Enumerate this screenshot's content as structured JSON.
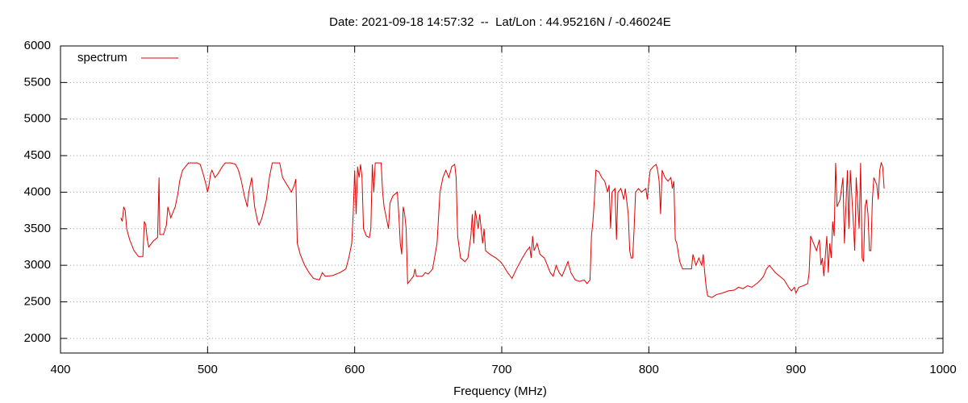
{
  "chart_data": {
    "type": "line",
    "title": "Date: 2021-09-18 14:57:32  --  Lat/Lon : 44.95216N / -0.46024E",
    "xlabel": "Frequency (MHz)",
    "xlim": [
      400,
      1000
    ],
    "xticks": [
      400,
      500,
      600,
      700,
      800,
      900,
      1000
    ],
    "ylim": [
      1800,
      6000
    ],
    "yticks": [
      2000,
      2500,
      3000,
      3500,
      4000,
      4500,
      5000,
      5500,
      6000
    ],
    "grid": true,
    "legend": "top-left",
    "x": [
      441,
      442,
      443,
      444,
      445,
      447,
      450,
      453,
      456,
      457,
      458,
      459,
      460,
      463,
      466,
      467,
      467.5,
      470,
      472,
      473,
      475,
      478,
      480,
      481,
      483,
      485,
      487,
      490,
      493,
      495,
      497,
      499,
      500,
      501,
      502,
      503,
      505,
      507,
      510,
      512,
      516,
      519,
      521,
      523,
      525,
      527,
      528,
      530,
      531,
      532,
      534,
      535,
      537,
      540,
      542,
      544,
      549,
      551,
      554,
      557,
      559,
      560,
      561,
      563,
      566,
      569,
      572,
      576,
      578,
      580,
      585,
      590,
      594,
      596,
      598,
      599,
      600,
      601,
      602,
      603,
      604,
      605,
      606,
      608,
      610,
      611,
      612,
      613,
      614,
      618,
      619,
      620,
      622,
      623,
      624,
      626,
      629,
      630,
      631,
      632,
      633,
      634,
      635,
      636,
      638,
      640,
      641,
      642,
      646,
      648,
      650,
      653,
      656,
      658,
      660,
      662,
      664,
      666,
      668,
      669,
      670,
      672,
      675,
      677,
      679,
      680,
      681,
      682,
      684,
      685,
      687,
      688,
      689,
      692,
      696,
      699,
      701,
      704,
      707,
      710,
      714,
      717,
      719,
      720,
      721,
      722,
      724,
      726,
      729,
      731,
      733,
      735,
      737,
      739,
      741,
      743,
      745,
      747,
      750,
      753,
      756,
      758,
      760,
      761,
      762,
      763,
      764,
      766,
      768,
      770,
      772,
      773,
      774,
      775,
      777,
      778,
      779,
      781,
      783,
      784,
      786,
      787,
      788,
      789,
      790,
      791,
      793,
      795,
      798,
      799,
      800,
      801,
      803,
      805,
      806,
      807,
      808,
      809,
      811,
      813,
      815,
      816,
      817,
      818,
      819,
      821,
      823,
      826,
      829,
      830,
      832,
      834,
      836,
      837,
      838,
      839,
      840,
      843,
      846,
      850,
      854,
      858,
      861,
      864,
      867,
      870,
      874,
      876,
      878,
      880,
      882,
      884,
      886,
      889,
      892,
      895,
      897,
      899,
      900,
      902,
      905,
      908,
      909,
      910,
      912,
      914,
      916,
      917,
      918,
      919,
      921,
      922,
      923,
      924,
      925,
      926,
      927,
      928,
      930,
      932,
      933,
      935,
      936,
      937,
      939,
      940,
      941,
      943,
      944,
      945,
      946,
      947,
      948,
      949,
      950,
      951,
      952,
      953,
      955,
      956,
      957,
      958,
      959,
      960
    ],
    "series": [
      {
        "name": "spectrum",
        "color": "#e00000",
        "values": [
          3650,
          3600,
          3800,
          3750,
          3500,
          3350,
          3200,
          3120,
          3120,
          3600,
          3550,
          3350,
          3250,
          3330,
          3380,
          4200,
          3420,
          3420,
          3550,
          3800,
          3650,
          3800,
          4000,
          4150,
          4300,
          4350,
          4400,
          4400,
          4400,
          4380,
          4250,
          4100,
          4000,
          4100,
          4250,
          4300,
          4200,
          4250,
          4350,
          4400,
          4400,
          4380,
          4300,
          4150,
          3950,
          3800,
          4000,
          4200,
          4000,
          3800,
          3600,
          3550,
          3650,
          3900,
          4200,
          4400,
          4400,
          4200,
          4100,
          4000,
          4100,
          4180,
          3300,
          3150,
          3000,
          2900,
          2820,
          2800,
          2900,
          2850,
          2860,
          2900,
          2950,
          3100,
          3300,
          3700,
          4300,
          3700,
          4350,
          4200,
          4380,
          4200,
          3500,
          3400,
          3380,
          3500,
          4380,
          4000,
          4400,
          4400,
          4000,
          3800,
          3600,
          3500,
          3850,
          3950,
          4000,
          3700,
          3300,
          3150,
          3800,
          3700,
          3500,
          2750,
          2800,
          2850,
          2950,
          2850,
          2850,
          2900,
          2880,
          2950,
          3300,
          4000,
          4200,
          4300,
          4200,
          4350,
          4380,
          4200,
          3400,
          3100,
          3050,
          3100,
          3400,
          3700,
          3300,
          3750,
          3500,
          3700,
          3300,
          3500,
          3200,
          3150,
          3100,
          3050,
          3000,
          2900,
          2820,
          2950,
          3100,
          3200,
          3250,
          3100,
          3400,
          3200,
          3300,
          3150,
          3100,
          3000,
          2900,
          2850,
          3000,
          2900,
          2850,
          2950,
          3050,
          2900,
          2800,
          2780,
          2800,
          2750,
          2800,
          3400,
          3600,
          3900,
          4300,
          4280,
          4200,
          4150,
          4000,
          4100,
          3500,
          4000,
          4050,
          3350,
          4000,
          4050,
          3900,
          4050,
          3700,
          3200,
          3100,
          3100,
          3500,
          4000,
          4050,
          4000,
          4050,
          3900,
          4150,
          4300,
          4350,
          4380,
          4300,
          4150,
          3700,
          4300,
          4200,
          4150,
          4200,
          4050,
          4150,
          3350,
          3300,
          3050,
          2950,
          2950,
          2950,
          3150,
          3000,
          3100,
          3000,
          3150,
          2900,
          2700,
          2580,
          2560,
          2600,
          2620,
          2650,
          2660,
          2700,
          2680,
          2720,
          2700,
          2760,
          2800,
          2850,
          2950,
          3000,
          2950,
          2900,
          2850,
          2800,
          2700,
          2650,
          2700,
          2620,
          2700,
          2720,
          2750,
          2900,
          3400,
          3300,
          3200,
          3350,
          3000,
          3100,
          2850,
          3400,
          2900,
          3300,
          3100,
          3600,
          3400,
          4400,
          3800,
          3900,
          4200,
          3300,
          4300,
          3500,
          4300,
          3600,
          3200,
          4200,
          3500,
          4400,
          3100,
          3050,
          3800,
          3900,
          3700,
          3200,
          3200,
          3900,
          4200,
          4100,
          3900,
          4300,
          4400,
          4350,
          4050
        ]
      }
    ]
  }
}
